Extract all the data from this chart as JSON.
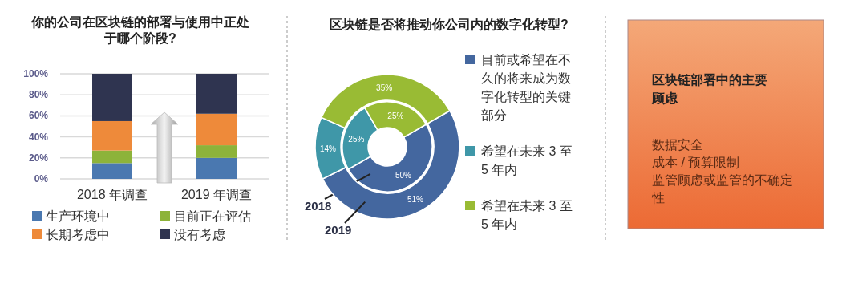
{
  "chart_data": [
    {
      "type": "bar",
      "title": "你的公司在区块链的部署与使用中正处于哪个阶段?",
      "categories": [
        "2018 年调查",
        "2019 年调查"
      ],
      "stacked": true,
      "series": [
        {
          "name": "生产环境中",
          "color": "#4a78b0",
          "values": [
            15,
            20
          ]
        },
        {
          "name": "目前正在评估",
          "color": "#8db33a",
          "values": [
            12,
            12
          ]
        },
        {
          "name": "长期考虑中",
          "color": "#ee8a3a",
          "values": [
            28,
            30
          ]
        },
        {
          "name": "没有考虑",
          "color": "#2f3450",
          "values": [
            45,
            38
          ]
        }
      ],
      "ylim": [
        0,
        100
      ],
      "yticks": [
        {
          "value": 0,
          "label": "0%"
        },
        {
          "value": 20,
          "label": "20%"
        },
        {
          "value": 40,
          "label": "40%"
        },
        {
          "value": 60,
          "label": "60%"
        },
        {
          "value": 80,
          "label": "80%"
        },
        {
          "value": 100,
          "label": "100%"
        }
      ],
      "grid": "y",
      "legend": "bottom"
    },
    {
      "type": "donut",
      "title": "区块链是否将推动你公司内的数字化转型?",
      "categories": [
        "目前或希望在不久的将来成为数字化转型的关键部分",
        "希望在未来 3 至 5 年内",
        "希望在未来 3 至 5 年内"
      ],
      "colors": [
        "#44679f",
        "#3f97a8",
        "#99bb34"
      ],
      "series": [
        {
          "name": "2018",
          "values": [
            50,
            25,
            25
          ],
          "value_labels": [
            "50%",
            "25%",
            "25%"
          ]
        },
        {
          "name": "2019",
          "values": [
            51,
            14,
            35
          ],
          "value_labels": [
            "51%",
            "14%",
            "35%"
          ]
        }
      ],
      "legend": "right"
    },
    {
      "type": "other",
      "title": "区块链部署中的主要顾虑",
      "annotations": [
        "数据安全",
        "成本 / 预算限制",
        "监管顾虑或监管的不确定性"
      ]
    }
  ]
}
